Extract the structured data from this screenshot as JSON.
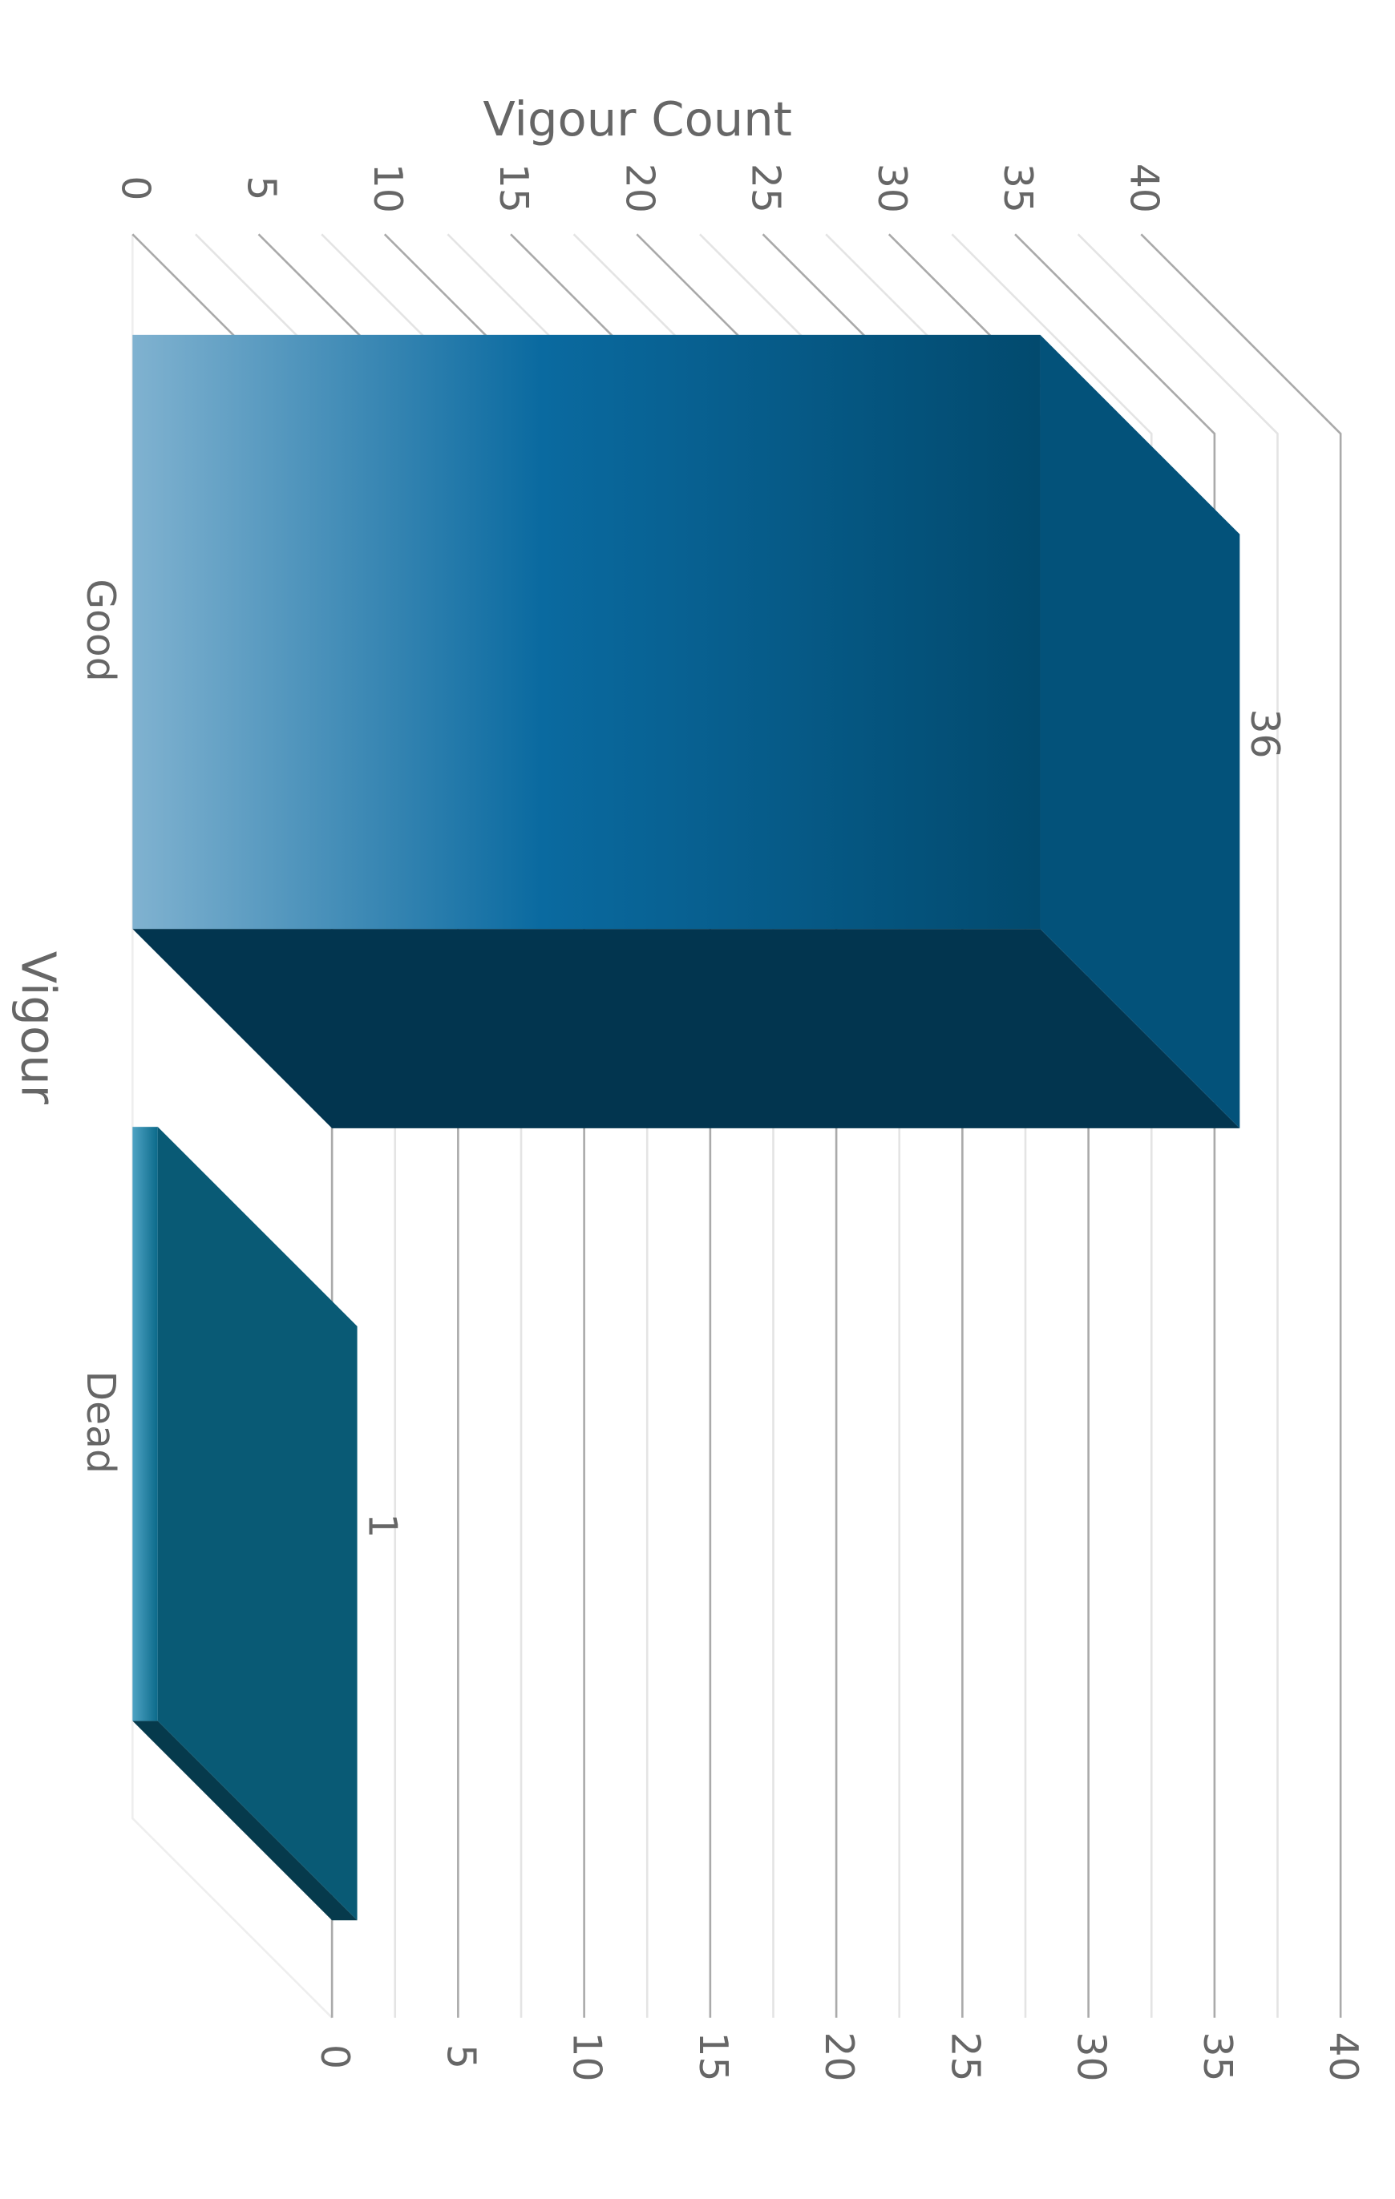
{
  "chart_data": {
    "type": "bar3d",
    "orientation": "rotated",
    "title": "Vigour Count",
    "x_label": "Vigour",
    "categories": [
      "Good",
      "Dead"
    ],
    "values": [
      36,
      1
    ],
    "colors": [
      "#03608f",
      "#0b6a8a"
    ],
    "ylim": [
      0,
      40
    ],
    "yticks": [
      0,
      5,
      10,
      15,
      20,
      25,
      30,
      35,
      40
    ],
    "grid": true
  }
}
